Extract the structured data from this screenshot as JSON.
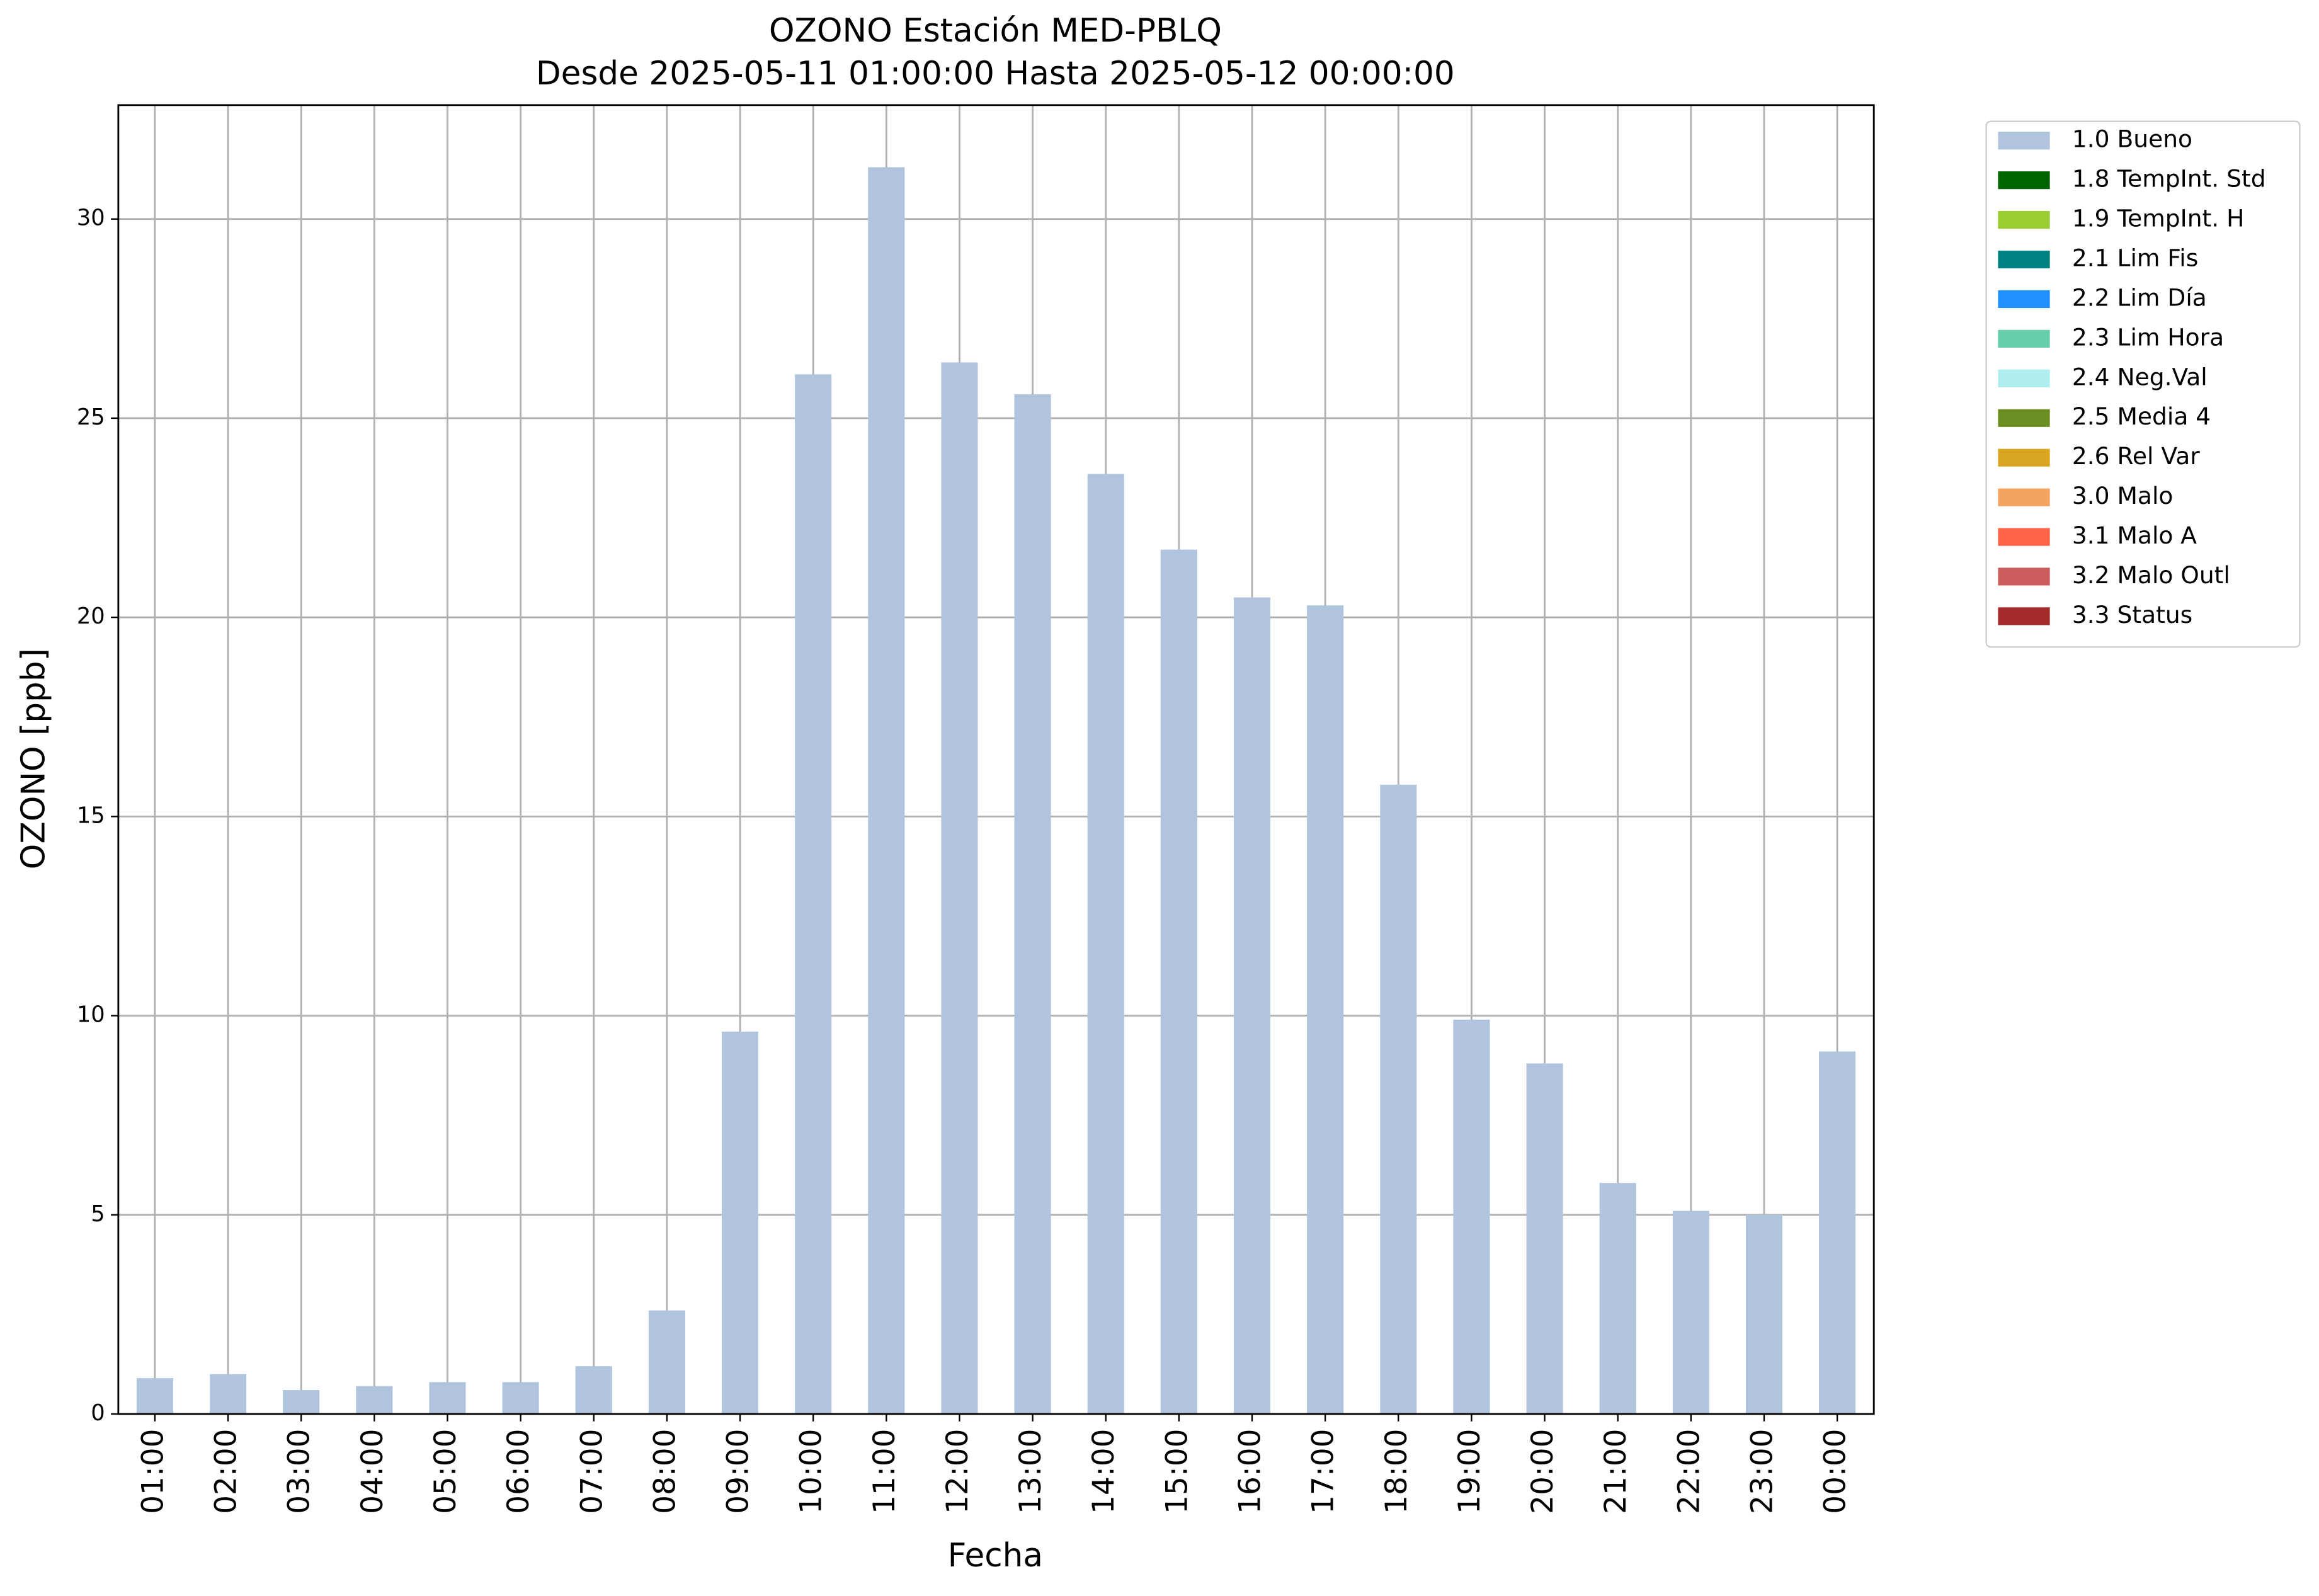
{
  "chart_data": {
    "type": "stacked_bar",
    "title": "OZONO Estación MED-PBLQ",
    "subtitle": "Desde 2025-05-11 01:00:00 Hasta 2025-05-12 00:00:00",
    "x_label": "Fecha",
    "y_label": "OZONO [ppb]",
    "categories": [
      "01:00",
      "02:00",
      "03:00",
      "04:00",
      "05:00",
      "06:00",
      "07:00",
      "08:00",
      "09:00",
      "10:00",
      "11:00",
      "12:00",
      "13:00",
      "14:00",
      "15:00",
      "16:00",
      "17:00",
      "18:00",
      "19:00",
      "20:00",
      "21:00",
      "22:00",
      "23:00",
      "00:00"
    ],
    "series": [
      {
        "name": "1.0 Bueno",
        "color": "#b0c4de",
        "values": [
          0.9,
          1.0,
          0.6,
          0.7,
          0.8,
          0.8,
          1.2,
          2.6,
          9.6,
          26.1,
          31.3,
          26.4,
          25.6,
          23.6,
          21.7,
          20.5,
          20.3,
          15.8,
          9.9,
          8.8,
          5.8,
          5.1,
          5.0,
          9.1
        ]
      },
      {
        "name": "1.8 TempInt. Std",
        "color": "#006400",
        "values": [
          null,
          null,
          null,
          null,
          null,
          null,
          null,
          null,
          null,
          null,
          null,
          null,
          null,
          null,
          null,
          null,
          null,
          null,
          null,
          null,
          null,
          null,
          null,
          null
        ]
      },
      {
        "name": "1.9 TempInt. H",
        "color": "#9acd32",
        "values": [
          null,
          null,
          null,
          null,
          null,
          null,
          null,
          null,
          null,
          null,
          null,
          null,
          null,
          null,
          null,
          null,
          null,
          null,
          null,
          null,
          null,
          null,
          null,
          null
        ]
      },
      {
        "name": "2.1 Lim Fis",
        "color": "#008080",
        "values": [
          null,
          null,
          null,
          null,
          null,
          null,
          null,
          null,
          null,
          null,
          null,
          null,
          null,
          null,
          null,
          null,
          null,
          null,
          null,
          null,
          null,
          null,
          null,
          null
        ]
      },
      {
        "name": "2.2 Lim Día",
        "color": "#1e90ff",
        "values": [
          null,
          null,
          null,
          null,
          null,
          null,
          null,
          null,
          null,
          null,
          null,
          null,
          null,
          null,
          null,
          null,
          null,
          null,
          null,
          null,
          null,
          null,
          null,
          null
        ]
      },
      {
        "name": "2.3 Lim Hora",
        "color": "#66cdaa",
        "values": [
          null,
          null,
          null,
          null,
          null,
          null,
          null,
          null,
          null,
          null,
          null,
          null,
          null,
          null,
          null,
          null,
          null,
          null,
          null,
          null,
          null,
          null,
          null,
          null
        ]
      },
      {
        "name": "2.4 Neg.Val",
        "color": "#afeeee",
        "values": [
          null,
          null,
          null,
          null,
          null,
          null,
          null,
          null,
          null,
          null,
          null,
          null,
          null,
          null,
          null,
          null,
          null,
          null,
          null,
          null,
          null,
          null,
          null,
          null
        ]
      },
      {
        "name": "2.5 Media 4",
        "color": "#6b8e23",
        "values": [
          null,
          null,
          null,
          null,
          null,
          null,
          null,
          null,
          null,
          null,
          null,
          null,
          null,
          null,
          null,
          null,
          null,
          null,
          null,
          null,
          null,
          null,
          null,
          null
        ]
      },
      {
        "name": "2.6 Rel Var",
        "color": "#daa520",
        "values": [
          null,
          null,
          null,
          null,
          null,
          null,
          null,
          null,
          null,
          null,
          null,
          null,
          null,
          null,
          null,
          null,
          null,
          null,
          null,
          null,
          null,
          null,
          null,
          null
        ]
      },
      {
        "name": "3.0 Malo",
        "color": "#f4a460",
        "values": [
          null,
          null,
          null,
          null,
          null,
          null,
          null,
          null,
          null,
          null,
          null,
          null,
          null,
          null,
          null,
          null,
          null,
          null,
          null,
          null,
          null,
          null,
          null,
          null
        ]
      },
      {
        "name": "3.1 Malo A",
        "color": "#ff6347",
        "values": [
          null,
          null,
          null,
          null,
          null,
          null,
          null,
          null,
          null,
          null,
          null,
          null,
          null,
          null,
          null,
          null,
          null,
          null,
          null,
          null,
          null,
          null,
          null,
          null
        ]
      },
      {
        "name": "3.2 Malo Outl",
        "color": "#cd5c5c",
        "values": [
          null,
          null,
          null,
          null,
          null,
          null,
          null,
          null,
          null,
          null,
          null,
          null,
          null,
          null,
          null,
          null,
          null,
          null,
          null,
          null,
          null,
          null,
          null,
          null
        ]
      },
      {
        "name": "3.3 Status",
        "color": "#a52a2a",
        "values": [
          null,
          null,
          null,
          null,
          null,
          null,
          null,
          null,
          null,
          null,
          null,
          null,
          null,
          null,
          null,
          null,
          null,
          null,
          null,
          null,
          null,
          null,
          null,
          null
        ]
      }
    ],
    "ylim": [
      0,
      32.86
    ],
    "yticks": [
      0,
      5,
      10,
      15,
      20,
      25,
      30
    ],
    "grid": true,
    "legend": "outside upper right"
  }
}
